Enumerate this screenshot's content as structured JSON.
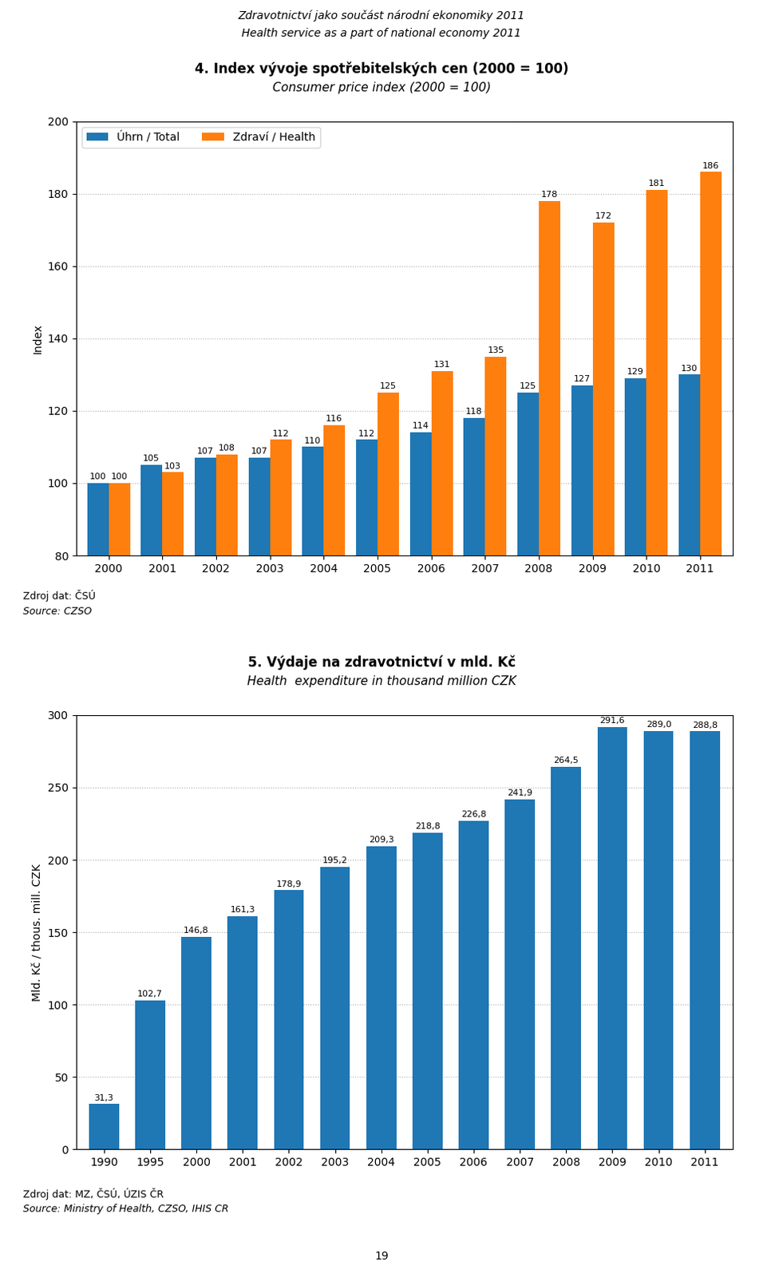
{
  "chart_data": [
    {
      "type": "bar",
      "title": "4. Index vývoje spotřebitelských cen (2000 = 100)",
      "subtitle": "Consumer price index (2000 = 100)",
      "ylabel": "Index",
      "categories": [
        "2000",
        "2001",
        "2002",
        "2003",
        "2004",
        "2005",
        "2006",
        "2007",
        "2008",
        "2009",
        "2010",
        "2011"
      ],
      "series": [
        {
          "name": "Úhrn / Total",
          "values": [
            100,
            105,
            107,
            107,
            110,
            112,
            114,
            118,
            125,
            127,
            129,
            130
          ]
        },
        {
          "name": "Zdraví / Health",
          "values": [
            100,
            103,
            108,
            112,
            116,
            125,
            131,
            135,
            178,
            172,
            181,
            186
          ]
        }
      ],
      "ylim": [
        80,
        200
      ],
      "yticks": [
        80,
        100,
        120,
        140,
        160,
        180,
        200
      ],
      "grid": true,
      "legend": "upper left",
      "data_labels": true,
      "annotations": [
        "Zdroj dat: ČSÚ",
        "Source: CZSO"
      ]
    },
    {
      "type": "bar",
      "title": "5. Výdaje na zdravotnictví v mld. Kč",
      "subtitle": "Health  expenditure in thousand million CZK",
      "ylabel": "Mld. Kč / thous. mill. CZK",
      "categories": [
        "1990",
        "1995",
        "2000",
        "2001",
        "2002",
        "2003",
        "2004",
        "2005",
        "2006",
        "2007",
        "2008",
        "2009",
        "2010",
        "2011"
      ],
      "values": [
        31.3,
        102.7,
        146.8,
        161.3,
        178.9,
        195.2,
        209.3,
        218.8,
        226.8,
        241.9,
        264.5,
        291.6,
        289.0,
        288.8
      ],
      "value_labels": [
        "31,3",
        "102,7",
        "146,8",
        "161,3",
        "178,9",
        "195,2",
        "209,3",
        "218,8",
        "226,8",
        "241,9",
        "264,5",
        "291,6",
        "289,0",
        "288,8"
      ],
      "ylim": [
        0,
        300
      ],
      "yticks": [
        0,
        50,
        100,
        150,
        200,
        250,
        300
      ],
      "grid": true,
      "data_labels": true,
      "annotations": [
        "Zdroj dat: MZ, ČSÚ, ÚZIS ČR",
        "Source: Ministry of Health, CZSO, IHIS CR"
      ]
    }
  ],
  "title": "Zdravotnictví jako součást národní ekonomiky 2011",
  "subtitle": "Health service as a part of national economy 2011",
  "annotations": [
    "19"
  ]
}
